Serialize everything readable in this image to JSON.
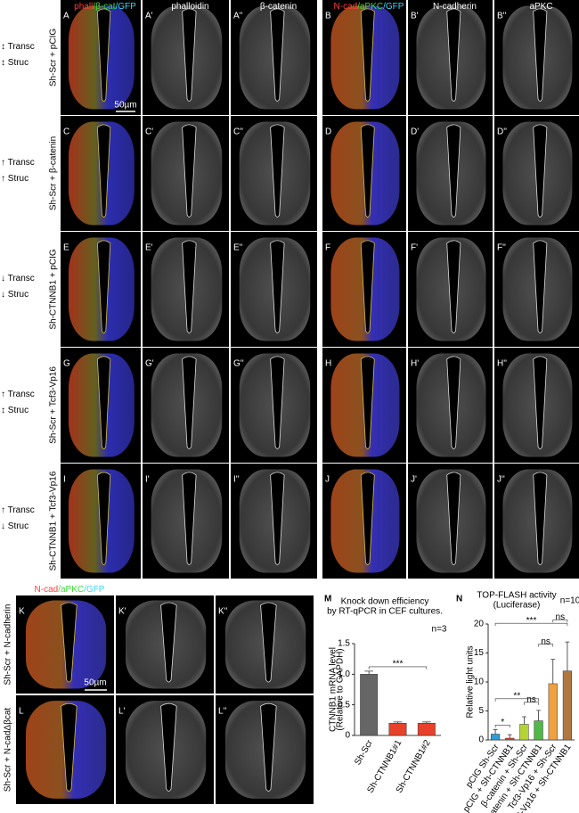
{
  "top_headers": [
    {
      "parts": [
        {
          "text": "phall",
          "color": "#ff3b3b"
        },
        {
          "text": "/β-cat",
          "color": "#3bdc3b"
        },
        {
          "text": "/GFP",
          "color": "#3bd6ff"
        }
      ]
    },
    {
      "parts": [
        {
          "text": "phalloidin",
          "color": "#ffffff"
        }
      ]
    },
    {
      "parts": [
        {
          "text": "β-catenin",
          "color": "#ffffff"
        }
      ]
    },
    {
      "parts": [
        {
          "text": "N-cad",
          "color": "#ff3b3b"
        },
        {
          "text": "/aPKC",
          "color": "#3bdc3b"
        },
        {
          "text": "/GFP",
          "color": "#3bd6ff"
        }
      ]
    },
    {
      "parts": [
        {
          "text": "N-cadherin",
          "color": "#ffffff"
        }
      ]
    },
    {
      "parts": [
        {
          "text": "aPKC",
          "color": "#ffffff"
        }
      ]
    }
  ],
  "rows": [
    {
      "conditions": [
        "↕ Transc",
        "↕ Struc"
      ],
      "label": "Sh-Scr + pCIG",
      "panels": [
        "A",
        "A'",
        "A''",
        "B",
        "B'",
        "B''"
      ]
    },
    {
      "conditions": [
        "↑ Transc",
        "↑ Struc"
      ],
      "label": "Sh-Scr + β-catenin",
      "panels": [
        "C",
        "C'",
        "C''",
        "D",
        "D'",
        "D''"
      ]
    },
    {
      "conditions": [
        "↓ Transc",
        "↓ Struc"
      ],
      "label": "Sh-CTNNB1 + pCIG",
      "panels": [
        "E",
        "E'",
        "E''",
        "F",
        "F'",
        "F''"
      ]
    },
    {
      "conditions": [
        "↑ Transc",
        "↕ Struc"
      ],
      "label": "Sh-Scr + Tcf3-Vp16",
      "panels": [
        "G",
        "G'",
        "G''",
        "H",
        "H'",
        "H''"
      ]
    },
    {
      "conditions": [
        "↑ Transc",
        "↓ Struc"
      ],
      "label": "Sh-CTNNB1 + Tcf3-Vp16",
      "panels": [
        "I",
        "I'",
        "I''",
        "J",
        "J'",
        "J''"
      ]
    }
  ],
  "scale_bar_top": "50µm",
  "bottom_headers": [
    {
      "parts": [
        {
          "text": "N-cad",
          "color": "#ff3b3b"
        },
        {
          "text": "/aPKC",
          "color": "#3bdc3b"
        },
        {
          "text": "/GFP",
          "color": "#3bd6ff"
        }
      ]
    },
    {
      "parts": [
        {
          "text": "N-cadherin",
          "color": "#ffffff"
        }
      ]
    },
    {
      "parts": [
        {
          "text": "aPKC",
          "color": "#ffffff"
        }
      ]
    }
  ],
  "bottom_rows": [
    {
      "label": "Sh-Scr + N-cadherin",
      "panels": [
        "K",
        "K'",
        "K''"
      ]
    },
    {
      "label": "Sh-Scr + N-cadΔβcat",
      "panels": [
        "L",
        "L'",
        "L''"
      ]
    }
  ],
  "scale_bar_bottom": "50µm",
  "chart_data": [
    {
      "type": "bar",
      "panel_label": "M",
      "title": [
        "Knock down efficiency",
        "by RT-qPCR in CEF cultures."
      ],
      "ylabel": [
        "CTNNB1 mRNA level",
        "(Relative to GAPDH)"
      ],
      "note": "n=3",
      "categories": [
        "Sh-Scr",
        "Sh-CTNNB1#1",
        "Sh-CTNNB1#2"
      ],
      "values": [
        1.0,
        0.2,
        0.2
      ],
      "errors": [
        0.05,
        0.02,
        0.02
      ],
      "colors": [
        "#666666",
        "#e8412a",
        "#e8412a"
      ],
      "ylim": [
        0,
        1.5
      ],
      "yticks": [
        0,
        0.5,
        {
          "value": 1,
          "label": "1.0"
        },
        1.5
      ],
      "significance": [
        {
          "label": "***",
          "groups": [
            0,
            1,
            2
          ]
        }
      ]
    },
    {
      "type": "bar",
      "panel_label": "N",
      "title": [
        "TOP-FLASH activity",
        "(Luciferase)"
      ],
      "ylabel": [
        "Relative light units"
      ],
      "note": "n=10",
      "categories": [
        "pCIG Sh-Scr",
        "pCIG + Sh-CTNNB1",
        "β-catenin + Sh-Scr",
        "β-catenin + Sh-CTNNB1",
        "Tcf3-Vp16 + Sh-Scr",
        "Tcf3-Vp16 + Sh-CTNNB1"
      ],
      "values": [
        1.0,
        0.3,
        2.7,
        3.3,
        9.7,
        11.9
      ],
      "errors": [
        0.8,
        0.6,
        1.3,
        1.8,
        4.2,
        5.0
      ],
      "colors": [
        "#2a9fd8",
        "#e8412a",
        "#b5d334",
        "#4fb848",
        "#f0a040",
        "#b07840"
      ],
      "ylim": [
        0,
        20
      ],
      "yticks": [
        0,
        5,
        10,
        15,
        20
      ],
      "significance": [
        {
          "label": "*",
          "groups": [
            0,
            1
          ]
        },
        {
          "label": "ns",
          "groups": [
            2,
            3
          ]
        },
        {
          "label": "**",
          "groups": [
            0,
            2,
            3
          ]
        },
        {
          "label": "ns",
          "groups": [
            3,
            4
          ]
        },
        {
          "label": "***",
          "groups": [
            0,
            4,
            5
          ]
        },
        {
          "label": "ns",
          "groups": [
            4,
            5
          ]
        }
      ]
    }
  ]
}
